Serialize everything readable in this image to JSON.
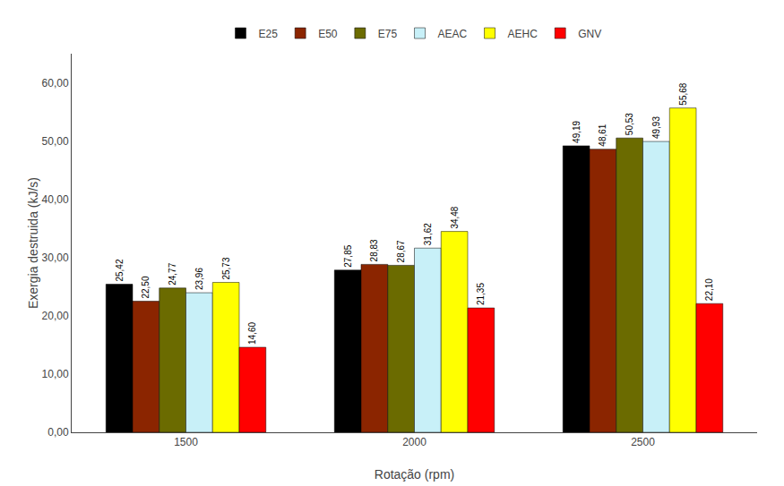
{
  "chart_data": {
    "type": "bar",
    "xlabel": "Rotação (rpm)",
    "ylabel": "Exergia destruida (kJ/s)",
    "categories": [
      "1500",
      "2000",
      "2500"
    ],
    "series": [
      {
        "name": "E25",
        "color": "#000000",
        "values": [
          25.42,
          27.85,
          49.19
        ],
        "value_labels": [
          "25,42",
          "27,85",
          "49,19"
        ]
      },
      {
        "name": "E50",
        "color": "#8B2500",
        "values": [
          22.5,
          28.83,
          48.61
        ],
        "value_labels": [
          "22,50",
          "28,83",
          "48,61"
        ]
      },
      {
        "name": "E75",
        "color": "#6B6B00",
        "values": [
          24.77,
          28.67,
          50.53
        ],
        "value_labels": [
          "24,77",
          "28,67",
          "50,53"
        ]
      },
      {
        "name": "AEAC",
        "color": "#C8F0F8",
        "values": [
          23.96,
          31.62,
          49.93
        ],
        "value_labels": [
          "23,96",
          "31,62",
          "49,93"
        ]
      },
      {
        "name": "AEHC",
        "color": "#FFFF00",
        "values": [
          25.73,
          34.48,
          55.68
        ],
        "value_labels": [
          "25,73",
          "34,48",
          "55,68"
        ]
      },
      {
        "name": "GNV",
        "color": "#FF0000",
        "values": [
          14.6,
          21.35,
          22.1
        ],
        "value_labels": [
          "14,60",
          "21,35",
          "22,10"
        ]
      }
    ],
    "ylim": [
      0,
      65
    ],
    "yticks": [
      {
        "value": 0,
        "label": "0,00"
      },
      {
        "value": 10,
        "label": "10,00"
      },
      {
        "value": 20,
        "label": "20,00"
      },
      {
        "value": 30,
        "label": "30,00"
      },
      {
        "value": 40,
        "label": "40,00"
      },
      {
        "value": 50,
        "label": "50,00"
      },
      {
        "value": 60,
        "label": "60,00"
      }
    ],
    "grid": false,
    "legend": "top",
    "data_labels": true
  }
}
